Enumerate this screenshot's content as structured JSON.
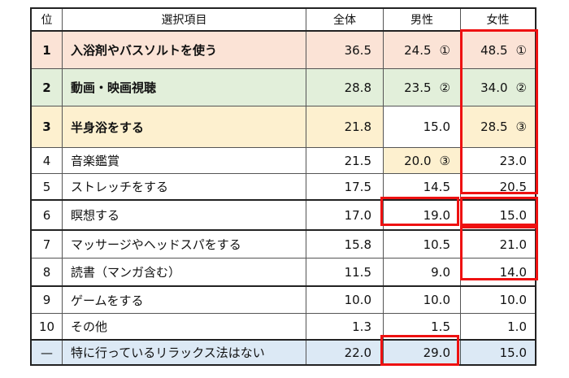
{
  "table": {
    "headers": {
      "rank": "位",
      "item": "選択項目",
      "all": "全体",
      "male": "男性",
      "female": "女性"
    },
    "rows": [
      {
        "rank": "1",
        "item": "入浴剤やバスソルトを使う",
        "all": "36.5",
        "male": "24.5",
        "male_mark": "①",
        "female": "48.5",
        "female_mark": "①"
      },
      {
        "rank": "2",
        "item": "動画・映画視聴",
        "all": "28.8",
        "male": "23.5",
        "male_mark": "②",
        "female": "34.0",
        "female_mark": "②"
      },
      {
        "rank": "3",
        "item": "半身浴をする",
        "all": "21.8",
        "male": "15.0",
        "male_mark": "",
        "female": "28.5",
        "female_mark": "③"
      },
      {
        "rank": "4",
        "item": "音楽鑑賞",
        "all": "21.5",
        "male": "20.0",
        "male_mark": "③",
        "female": "23.0",
        "female_mark": ""
      },
      {
        "rank": "5",
        "item": "ストレッチをする",
        "all": "17.5",
        "male": "14.5",
        "male_mark": "",
        "female": "20.5",
        "female_mark": ""
      },
      {
        "rank": "6",
        "item": "瞑想する",
        "all": "17.0",
        "male": "19.0",
        "male_mark": "",
        "female": "15.0",
        "female_mark": ""
      },
      {
        "rank": "7",
        "item": "マッサージやヘッドスパをする",
        "all": "15.8",
        "male": "10.5",
        "male_mark": "",
        "female": "21.0",
        "female_mark": ""
      },
      {
        "rank": "8",
        "item": "読書（マンガ含む）",
        "all": "11.5",
        "male": "9.0",
        "male_mark": "",
        "female": "14.0",
        "female_mark": ""
      },
      {
        "rank": "9",
        "item": "ゲームをする",
        "all": "10.0",
        "male": "10.0",
        "male_mark": "",
        "female": "10.0",
        "female_mark": ""
      },
      {
        "rank": "10",
        "item": "その他",
        "all": "1.3",
        "male": "1.5",
        "male_mark": "",
        "female": "1.0",
        "female_mark": ""
      },
      {
        "rank": "—",
        "item": "特に行っているリラックス法はない",
        "all": "22.0",
        "male": "29.0",
        "male_mark": "",
        "female": "15.0",
        "female_mark": ""
      }
    ]
  },
  "colors": {
    "rank1_bg": "#fbe3d6",
    "rank2_bg": "#e2efda",
    "rank3_bg": "#fdf0cf",
    "none_row_bg": "#dce9f5",
    "highlight_border": "#ee1111"
  },
  "chart_data": {
    "type": "table",
    "columns": [
      "位",
      "選択項目",
      "全体",
      "男性",
      "女性"
    ],
    "categories": [
      "入浴剤やバスソルトを使う",
      "動画・映画視聴",
      "半身浴をする",
      "音楽鑑賞",
      "ストレッチをする",
      "瞑想する",
      "マッサージやヘッドスパをする",
      "読書（マンガ含む）",
      "ゲームをする",
      "その他",
      "特に行っているリラックス法はない"
    ],
    "series": [
      {
        "name": "全体",
        "values": [
          36.5,
          28.8,
          21.8,
          21.5,
          17.5,
          17.0,
          15.8,
          11.5,
          10.0,
          1.3,
          22.0
        ]
      },
      {
        "name": "男性",
        "values": [
          24.5,
          23.5,
          15.0,
          20.0,
          14.5,
          19.0,
          10.5,
          9.0,
          10.0,
          1.5,
          29.0
        ]
      },
      {
        "name": "女性",
        "values": [
          48.5,
          34.0,
          28.5,
          23.0,
          20.5,
          15.0,
          21.0,
          14.0,
          10.0,
          1.0,
          15.0
        ]
      }
    ]
  }
}
